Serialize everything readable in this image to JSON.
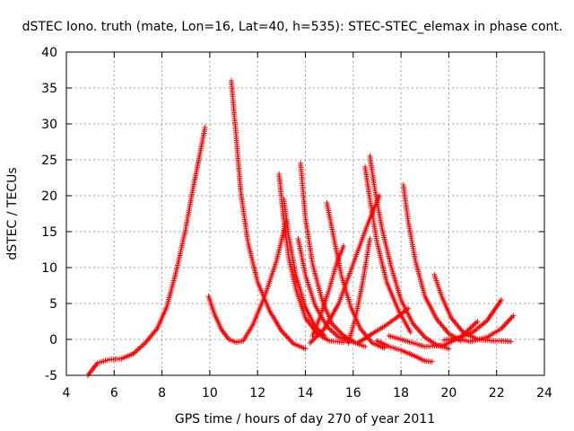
{
  "chart_data": {
    "type": "scatter",
    "title": "dSTEC Iono. truth (mate, Lon=16, Lat=40, h=535): STEC-STEC_elemax in phase cont.",
    "xlabel": "GPS time / hours of day 270 of year 2011",
    "ylabel": "dSTEC  / TECUs",
    "xlim": [
      4,
      24
    ],
    "ylim": [
      -5,
      40
    ],
    "xticks": [
      4,
      6,
      8,
      10,
      12,
      14,
      16,
      18,
      20,
      22,
      24
    ],
    "yticks": [
      -5,
      0,
      5,
      10,
      15,
      20,
      25,
      30,
      35,
      40
    ],
    "grid": true,
    "marker": "+",
    "color": "#ff0000",
    "series": [
      {
        "x": [
          4.9,
          5.3,
          5.8,
          6.3,
          6.8,
          7.3,
          7.8,
          8.2,
          8.6,
          9.0,
          9.3,
          9.6,
          9.8
        ],
        "y": [
          -5,
          -3.3,
          -2.8,
          -2.7,
          -2.0,
          -0.5,
          1.5,
          4.5,
          9.5,
          15.5,
          21,
          26,
          29.5
        ]
      },
      {
        "x": [
          9.95,
          10.2,
          10.5,
          10.8,
          11.1,
          11.4,
          11.8,
          12.3,
          12.8,
          13.2
        ],
        "y": [
          6,
          3.5,
          1.3,
          0,
          -0.4,
          -0.2,
          2.0,
          6.0,
          11.0,
          16.5
        ]
      },
      {
        "x": [
          10.9,
          11.1,
          11.3,
          11.6,
          12.0,
          12.5,
          13.0,
          13.5,
          14.0
        ],
        "y": [
          36,
          28.5,
          20.5,
          13.5,
          8.0,
          4.0,
          1.2,
          -0.6,
          -1.3
        ]
      },
      {
        "x": [
          12.9,
          13.1,
          13.3,
          13.6,
          14.0,
          14.5,
          15.0,
          15.6
        ],
        "y": [
          23,
          16.5,
          11.5,
          7.0,
          3.0,
          0.8,
          -0.2,
          -0.4
        ]
      },
      {
        "x": [
          13.1,
          13.3,
          13.6,
          14.0,
          14.4,
          14.8
        ],
        "y": [
          19.5,
          14.5,
          9.0,
          4.5,
          1.8,
          0.5
        ]
      },
      {
        "x": [
          13.8,
          14.0,
          14.3,
          14.7,
          15.1,
          15.6,
          16.1,
          16.5
        ],
        "y": [
          24.5,
          17,
          10.5,
          5.5,
          2.2,
          0.5,
          -0.5,
          -1.0
        ]
      },
      {
        "x": [
          13.7,
          14.0,
          14.4,
          14.9,
          15.4,
          16.0
        ],
        "y": [
          14,
          9.0,
          4.8,
          1.8,
          0.3,
          -0.3
        ]
      },
      {
        "x": [
          14.9,
          15.2,
          15.5,
          15.9,
          16.3,
          16.8,
          17.3
        ],
        "y": [
          19,
          14,
          9.0,
          4.5,
          1.5,
          -0.5,
          -1.2
        ]
      },
      {
        "x": [
          14.3,
          14.6,
          15.0,
          15.3,
          15.6
        ],
        "y": [
          0.5,
          3.0,
          7.0,
          10.5,
          13.0
        ]
      },
      {
        "x": [
          14.2,
          14.8,
          15.4,
          16.0,
          16.6,
          17.1
        ],
        "y": [
          -0.5,
          1.5,
          5.0,
          10.5,
          16.0,
          20.0
        ]
      },
      {
        "x": [
          15.6,
          15.8,
          16.1,
          16.4,
          16.7
        ],
        "y": [
          0.5,
          -0.5,
          3.0,
          8.0,
          14.0
        ]
      },
      {
        "x": [
          16.7,
          16.9,
          17.2,
          17.6,
          18.0,
          18.5,
          19.0,
          19.5,
          20.0
        ],
        "y": [
          25.5,
          21.0,
          15.5,
          10.0,
          5.5,
          2.2,
          0.3,
          -0.8,
          -1.3
        ]
      },
      {
        "x": [
          16.5,
          16.7,
          17.0,
          17.4,
          17.9,
          18.4
        ],
        "y": [
          24,
          19.5,
          13.5,
          8.0,
          4.0,
          1.0
        ]
      },
      {
        "x": [
          18.1,
          18.3,
          18.6,
          19.0,
          19.5,
          20.0,
          20.5
        ],
        "y": [
          21.5,
          16.5,
          11.0,
          6.0,
          2.8,
          0.8,
          -0.2
        ]
      },
      {
        "x": [
          16.2,
          16.8,
          17.3,
          17.8,
          18.3
        ],
        "y": [
          -0.5,
          0.8,
          1.8,
          3.0,
          4.3
        ]
      },
      {
        "x": [
          17.0,
          17.5,
          18.0,
          18.5,
          19.0,
          19.3
        ],
        "y": [
          -0.2,
          -1.0,
          -1.5,
          -2.2,
          -3.0,
          -3.1
        ]
      },
      {
        "x": [
          17.5,
          18.2,
          19.0,
          19.8,
          20.5,
          21.2
        ],
        "y": [
          0.5,
          -0.2,
          -1.0,
          -0.8,
          0.3,
          2.5
        ]
      },
      {
        "x": [
          19.4,
          19.7,
          20.1,
          20.6,
          21.2,
          21.8,
          22.3,
          22.6
        ],
        "y": [
          9.0,
          6.0,
          3.0,
          1.0,
          0.0,
          -0.2,
          -0.2,
          -0.3
        ]
      },
      {
        "x": [
          19.8,
          20.4,
          21.0,
          21.6,
          22.2
        ],
        "y": [
          -0.1,
          0.2,
          1.0,
          2.6,
          5.5
        ]
      },
      {
        "x": [
          20.2,
          20.9,
          21.6,
          22.2,
          22.7
        ],
        "y": [
          0.2,
          -0.3,
          0.3,
          1.5,
          3.3
        ]
      }
    ]
  }
}
